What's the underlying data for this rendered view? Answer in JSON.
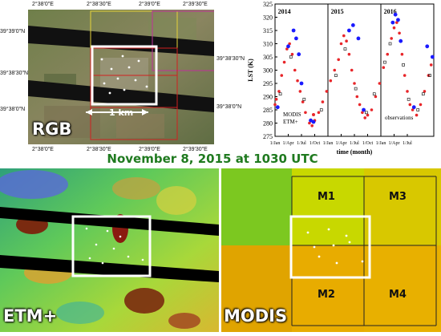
{
  "title": "November 8, 2015 at 1030 UTC",
  "rgb_panel": {
    "label": "RGB",
    "scale_label": "1 km",
    "top_ticks": [
      "2°38'0\"E",
      "2°38'30\"E",
      "2°39'0\"E",
      "2°39'30\"E"
    ],
    "bottom_ticks": [
      "2°38'0\"E",
      "2°38'30\"E",
      "2°39'0\"E",
      "2°39'30\"E"
    ],
    "left_ticks": [
      "39°39'0\"N",
      "39°38'30\"N",
      "39°38'0\"N"
    ],
    "right_ticks": [
      "39°38'30\"N",
      "39°38'0\"N"
    ]
  },
  "etm_panel": {
    "label": "ETM+"
  },
  "modis_panel": {
    "label": "MODIS",
    "cells": [
      "M1",
      "M3",
      "M2",
      "M4"
    ]
  },
  "colors": {
    "title_green": "#1f7a1f",
    "etm_red": "#e8262a",
    "modis_blue": "#1a1aff",
    "obs_black": "#222222"
  },
  "chart_data": {
    "type": "scatter",
    "title": "",
    "xlabel": "time (month)",
    "ylabel": "LST (K)",
    "ylim": [
      275,
      325
    ],
    "yticks": [
      275,
      280,
      285,
      290,
      295,
      300,
      305,
      310,
      315,
      320,
      325
    ],
    "year_labels": [
      "2014",
      "2015",
      "2016"
    ],
    "xtick_labels": [
      "1/Jan",
      "1/Apr",
      "1/Jul",
      "1/Oct",
      "1/Jan",
      "1/Apr",
      "1/Jul",
      "1/Oct",
      "1/Jan",
      "1/Apr",
      "1/Jul"
    ],
    "legend": [
      "MODIS",
      "ETM+"
    ],
    "annotation": "observations",
    "series": [
      {
        "name": "MODIS",
        "points": [
          [
            0.0,
            287
          ],
          [
            0.1,
            289
          ],
          [
            0.3,
            292
          ],
          [
            0.5,
            298
          ],
          [
            0.7,
            303
          ],
          [
            0.9,
            308
          ],
          [
            1.1,
            310
          ],
          [
            1.3,
            306
          ],
          [
            1.5,
            300
          ],
          [
            1.7,
            296
          ],
          [
            1.9,
            292
          ],
          [
            2.1,
            288
          ],
          [
            2.3,
            284
          ],
          [
            2.6,
            280
          ],
          [
            2.8,
            279
          ],
          [
            3.0,
            281
          ],
          [
            3.3,
            284
          ],
          [
            3.6,
            288
          ],
          [
            3.9,
            292
          ],
          [
            4.2,
            296
          ],
          [
            4.5,
            300
          ],
          [
            4.8,
            304
          ],
          [
            5.0,
            310
          ],
          [
            5.2,
            313
          ],
          [
            5.4,
            311
          ],
          [
            5.6,
            306
          ],
          [
            5.8,
            300
          ],
          [
            6.0,
            295
          ],
          [
            6.2,
            290
          ],
          [
            6.4,
            287
          ],
          [
            6.6,
            284
          ],
          [
            6.8,
            282
          ],
          [
            7.0,
            283
          ],
          [
            7.3,
            285
          ],
          [
            7.6,
            290
          ],
          [
            7.9,
            295
          ],
          [
            8.2,
            301
          ],
          [
            8.5,
            306
          ],
          [
            8.8,
            312
          ],
          [
            9.0,
            316
          ],
          [
            9.2,
            318
          ],
          [
            9.4,
            314
          ],
          [
            9.6,
            306
          ],
          [
            9.8,
            298
          ],
          [
            10.0,
            292
          ],
          [
            10.2,
            287
          ],
          [
            10.4,
            285
          ],
          [
            10.7,
            283
          ],
          [
            11.0,
            287
          ],
          [
            11.3,
            292
          ],
          [
            11.6,
            298
          ],
          [
            11.8,
            302
          ]
        ]
      },
      {
        "name": "ETM+",
        "points": [
          [
            0.2,
            286
          ],
          [
            1.0,
            309
          ],
          [
            1.4,
            315
          ],
          [
            1.6,
            312
          ],
          [
            1.8,
            306
          ],
          [
            2.0,
            295
          ],
          [
            2.7,
            281
          ],
          [
            5.6,
            315
          ],
          [
            5.9,
            317
          ],
          [
            6.3,
            312
          ],
          [
            6.7,
            285
          ],
          [
            8.9,
            318
          ],
          [
            9.1,
            321
          ],
          [
            9.3,
            319
          ],
          [
            9.5,
            311
          ],
          [
            10.5,
            286
          ],
          [
            11.5,
            309
          ],
          [
            11.9,
            305
          ]
        ]
      },
      {
        "name": "observations",
        "points": [
          [
            0.4,
            291
          ],
          [
            1.2,
            305
          ],
          [
            2.2,
            289
          ],
          [
            3.5,
            285
          ],
          [
            4.6,
            298
          ],
          [
            5.3,
            308
          ],
          [
            6.1,
            293
          ],
          [
            6.9,
            284
          ],
          [
            7.5,
            291
          ],
          [
            8.3,
            303
          ],
          [
            8.7,
            310
          ],
          [
            9.7,
            302
          ],
          [
            10.1,
            289
          ],
          [
            10.8,
            285
          ],
          [
            11.2,
            291
          ],
          [
            11.7,
            298
          ]
        ]
      }
    ]
  }
}
